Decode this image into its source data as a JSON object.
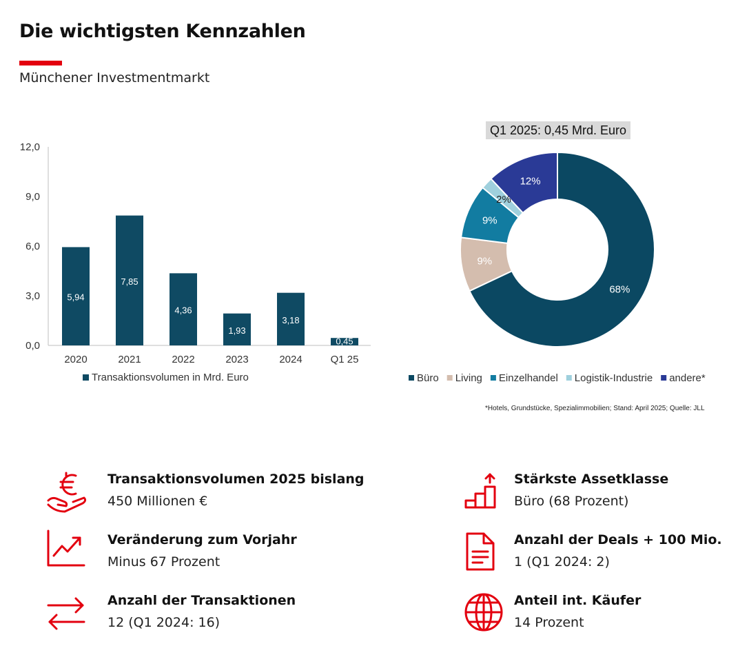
{
  "header": {
    "title": "Die wichtigsten Kennzahlen",
    "subtitle": "Münchener Investmentmarkt",
    "accent_color": "#e3000f"
  },
  "chart_data": [
    {
      "type": "bar",
      "categories": [
        "2020",
        "2021",
        "2022",
        "2023",
        "2024",
        "Q1 25"
      ],
      "series": [
        {
          "name": "Transaktionsvolumen in Mrd. Euro",
          "values": [
            5.94,
            7.85,
            4.36,
            1.93,
            3.18,
            0.45
          ],
          "labels": [
            "5,94",
            "7,85",
            "4,36",
            "1,93",
            "3,18",
            "0,45"
          ],
          "color": "#0f4a63"
        }
      ],
      "yticks": [
        "0,0",
        "3,0",
        "6,0",
        "9,0",
        "12,0"
      ],
      "ylim": [
        0,
        12
      ],
      "legend": "bottom",
      "grid": false
    },
    {
      "type": "pie",
      "style": "donut",
      "title": "Q1 2025: 0,45 Mrd. Euro",
      "slices": [
        {
          "name": "Büro",
          "value": 68,
          "label": "68%",
          "color": "#0b4862"
        },
        {
          "name": "Living",
          "value": 9,
          "label": "9%",
          "color": "#d4bdae"
        },
        {
          "name": "Einzelhandel",
          "value": 9,
          "label": "9%",
          "color": "#127ca1"
        },
        {
          "name": "Logistik-Industrie",
          "value": 2,
          "label": "2%",
          "color": "#9fd0dd"
        },
        {
          "name": "andere*",
          "value": 12,
          "label": "12%",
          "color": "#2a3a96"
        }
      ],
      "legend": "bottom",
      "footnote": "*Hotels, Grundstücke, Spezialimmobilien; Stand: April 2025; Quelle: JLL"
    }
  ],
  "kpis": {
    "left": [
      {
        "icon": "euro-hand-icon",
        "title": "Transaktionsvolumen  2025 bislang",
        "value": "450 Millionen €"
      },
      {
        "icon": "trend-chart-icon",
        "title": "Veränderung zum Vorjahr",
        "value": "Minus 67 Prozent"
      },
      {
        "icon": "exchange-arrows-icon",
        "title": "Anzahl der Transaktionen",
        "value": "12 (Q1 2024: 16)"
      }
    ],
    "right": [
      {
        "icon": "rising-steps-icon",
        "title": "Stärkste Assetklasse",
        "value": "Büro (68 Prozent)"
      },
      {
        "icon": "document-icon",
        "title": "Anzahl der Deals + 100 Mio.",
        "value": "1 (Q1 2024: 2)"
      },
      {
        "icon": "globe-icon",
        "title": "Anteil int. Käufer",
        "value": "14 Prozent"
      }
    ],
    "icon_color": "#e3000f"
  }
}
